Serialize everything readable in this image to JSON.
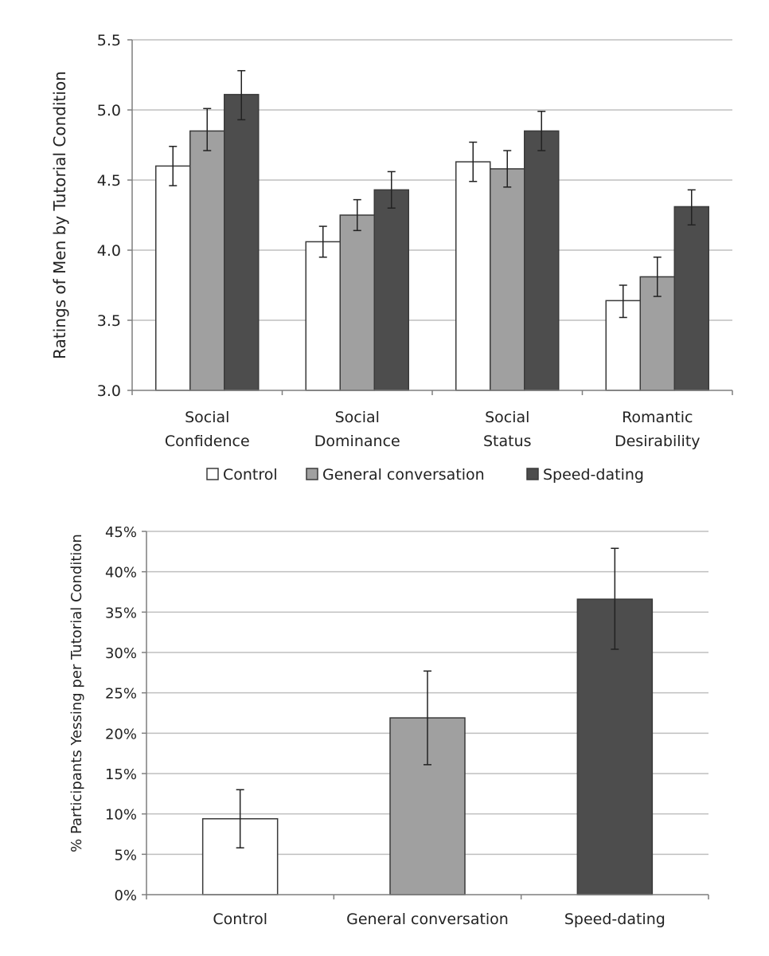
{
  "colors": {
    "control": "#ffffff",
    "general": "#a0a0a0",
    "speed": "#4d4d4d",
    "grid": "#bfbfbf",
    "axis": "#7f7f7f"
  },
  "chart_data": [
    {
      "type": "bar",
      "ylabel": "Ratings of Men by Tutorial Condition",
      "ylim": [
        3.0,
        5.5
      ],
      "yticks": [
        "3.0",
        "3.5",
        "4.0",
        "4.5",
        "5.0",
        "5.5"
      ],
      "ytick_values": [
        3.0,
        3.5,
        4.0,
        4.5,
        5.0,
        5.5
      ],
      "grid": true,
      "legend_position": "bottom",
      "categories": [
        [
          "Social",
          "Confidence"
        ],
        [
          "Social",
          "Dominance"
        ],
        [
          "Social",
          "Status"
        ],
        [
          "Romantic",
          "Desirability"
        ]
      ],
      "series": [
        {
          "name": "Control",
          "values": [
            4.6,
            4.06,
            4.63,
            3.64
          ],
          "err_low": [
            4.46,
            3.95,
            4.49,
            3.52
          ],
          "err_high": [
            4.74,
            4.17,
            4.77,
            3.75
          ]
        },
        {
          "name": "General conversation",
          "values": [
            4.85,
            4.25,
            4.58,
            3.81
          ],
          "err_low": [
            4.71,
            4.14,
            4.45,
            3.67
          ],
          "err_high": [
            5.01,
            4.36,
            4.71,
            3.95
          ]
        },
        {
          "name": "Speed-dating",
          "values": [
            5.11,
            4.43,
            4.85,
            4.31
          ],
          "err_low": [
            4.93,
            4.3,
            4.71,
            4.18
          ],
          "err_high": [
            5.28,
            4.56,
            4.99,
            4.43
          ]
        }
      ]
    },
    {
      "type": "bar",
      "ylabel": "% Participants Yessing per Tutorial Condition",
      "ylim": [
        0,
        45
      ],
      "yticks": [
        "0%",
        "5%",
        "10%",
        "15%",
        "20%",
        "25%",
        "30%",
        "35%",
        "40%",
        "45%"
      ],
      "ytick_values": [
        0,
        5,
        10,
        15,
        20,
        25,
        30,
        35,
        40,
        45
      ],
      "grid": true,
      "categories": [
        "Control",
        "General conversation",
        "Speed-dating"
      ],
      "values": [
        9.4,
        21.9,
        36.6
      ],
      "err_low": [
        5.8,
        16.1,
        30.4
      ],
      "err_high": [
        13.0,
        27.7,
        42.9
      ]
    }
  ]
}
